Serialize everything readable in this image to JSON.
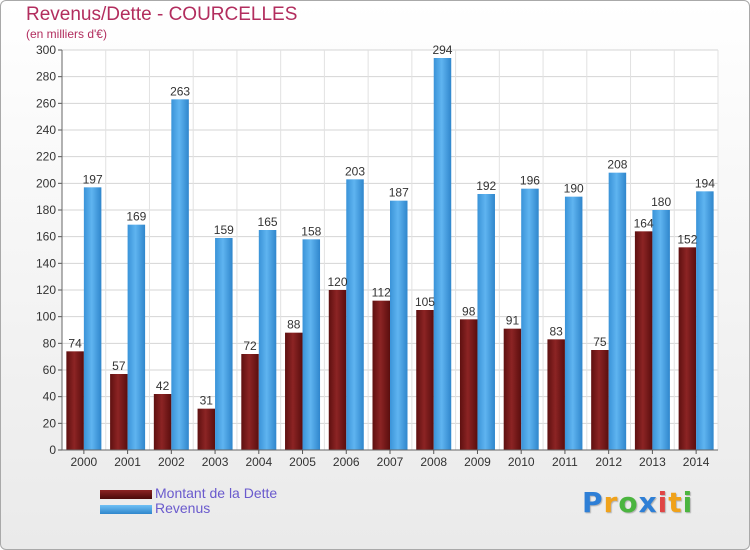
{
  "title": "Revenus/Dette - COURCELLES",
  "subtitle": "(en milliers d'€)",
  "logo": {
    "letters": [
      "P",
      "r",
      "o",
      "x",
      "i",
      "t",
      "i"
    ],
    "colors": [
      "#2e7fd6",
      "#f0a21a",
      "#4bb53f",
      "#2e7fd6",
      "#e04545",
      "#f0a21a",
      "#4bb53f"
    ]
  },
  "chart_data": {
    "type": "bar",
    "categories": [
      "2000",
      "2001",
      "2002",
      "2003",
      "2004",
      "2005",
      "2006",
      "2007",
      "2008",
      "2009",
      "2010",
      "2011",
      "2012",
      "2013",
      "2014"
    ],
    "series": [
      {
        "name": "Montant de la Dette",
        "color": "#7a1a1a",
        "values": [
          74,
          57,
          42,
          31,
          72,
          88,
          120,
          112,
          105,
          98,
          91,
          83,
          75,
          164,
          152
        ]
      },
      {
        "name": "Revenus",
        "color": "#4ba6e8",
        "values": [
          197,
          169,
          263,
          159,
          165,
          158,
          203,
          187,
          294,
          192,
          196,
          190,
          208,
          180,
          194
        ]
      }
    ],
    "yticks": [
      0,
      20,
      40,
      60,
      80,
      100,
      120,
      140,
      160,
      180,
      200,
      220,
      240,
      260,
      280,
      300
    ],
    "ylim": [
      0,
      300
    ],
    "grid": true,
    "legend_position": "bottom-left"
  }
}
